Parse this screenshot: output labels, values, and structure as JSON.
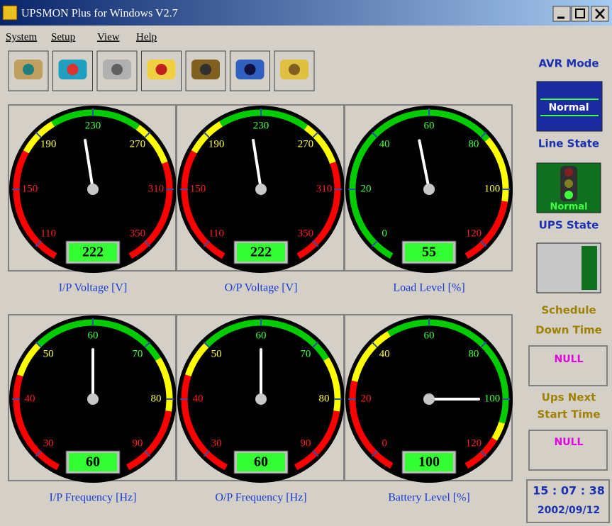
{
  "window": {
    "title": "UPSMON Plus for Windows V2.7"
  },
  "menu": [
    "System",
    "Setup",
    "View",
    "Help"
  ],
  "gauges": [
    {
      "label": "I/P Voltage [V]",
      "value": 222,
      "ticks": [
        110,
        150,
        190,
        230,
        270,
        310,
        350
      ],
      "zones": [
        {
          "from": 96,
          "to": 176,
          "color": "#ff0000"
        },
        {
          "from": 176,
          "to": 202,
          "color": "#ffff00"
        },
        {
          "from": 202,
          "to": 262,
          "color": "#00cc00"
        },
        {
          "from": 262,
          "to": 292,
          "color": "#ffff00"
        },
        {
          "from": 292,
          "to": 364,
          "color": "#ff0000"
        }
      ]
    },
    {
      "label": "O/P Voltage [V]",
      "value": 222,
      "ticks": [
        110,
        150,
        190,
        230,
        270,
        310,
        350
      ],
      "zones": [
        {
          "from": 96,
          "to": 176,
          "color": "#ff0000"
        },
        {
          "from": 176,
          "to": 202,
          "color": "#ffff00"
        },
        {
          "from": 202,
          "to": 262,
          "color": "#00cc00"
        },
        {
          "from": 262,
          "to": 292,
          "color": "#ffff00"
        },
        {
          "from": 292,
          "to": 364,
          "color": "#ff0000"
        }
      ]
    },
    {
      "label": "Load Level [%]",
      "value": 55,
      "ticks": [
        0,
        20,
        40,
        60,
        80,
        100,
        120
      ],
      "zones": [
        {
          "from": -7,
          "to": 82,
          "color": "#00cc00"
        },
        {
          "from": 82,
          "to": 104,
          "color": "#ffff00"
        },
        {
          "from": 104,
          "to": 127,
          "color": "#ff0000"
        }
      ]
    },
    {
      "label": "I/P Frequency [Hz]",
      "value": 60,
      "ticks": [
        30,
        40,
        50,
        60,
        70,
        80,
        90
      ],
      "zones": [
        {
          "from": 26,
          "to": 44,
          "color": "#ff0000"
        },
        {
          "from": 44,
          "to": 50,
          "color": "#ffff00"
        },
        {
          "from": 50,
          "to": 73,
          "color": "#00cc00"
        },
        {
          "from": 73,
          "to": 82,
          "color": "#ffff00"
        },
        {
          "from": 82,
          "to": 94,
          "color": "#ff0000"
        }
      ]
    },
    {
      "label": "O/P Frequency [Hz]",
      "value": 60,
      "ticks": [
        30,
        40,
        50,
        60,
        70,
        80,
        90
      ],
      "zones": [
        {
          "from": 26,
          "to": 44,
          "color": "#ff0000"
        },
        {
          "from": 44,
          "to": 50,
          "color": "#ffff00"
        },
        {
          "from": 50,
          "to": 73,
          "color": "#00cc00"
        },
        {
          "from": 73,
          "to": 82,
          "color": "#ffff00"
        },
        {
          "from": 82,
          "to": 94,
          "color": "#ff0000"
        }
      ]
    },
    {
      "label": "Battery Level [%]",
      "value": 100,
      "ticks": [
        0,
        20,
        40,
        60,
        80,
        100,
        120
      ],
      "zones": [
        {
          "from": -7,
          "to": 26,
          "color": "#ff0000"
        },
        {
          "from": 26,
          "to": 46,
          "color": "#ffff00"
        },
        {
          "from": 46,
          "to": 108,
          "color": "#00cc00"
        },
        {
          "from": 108,
          "to": 114,
          "color": "#ffff00"
        },
        {
          "from": 114,
          "to": 127,
          "color": "#ff0000"
        }
      ]
    }
  ],
  "status": {
    "avr_label": "AVR Mode",
    "avr_value": "Normal",
    "line_label": "Line State",
    "line_value": "Normal",
    "ups_label": "UPS State",
    "schedule_label": [
      "Schedule",
      "Down Time"
    ],
    "schedule_value": "NULL",
    "next_label": [
      "Ups Next",
      "Start Time"
    ],
    "next_value": "NULL",
    "time": "15 : 07 : 38",
    "date": "2002/09/12"
  }
}
